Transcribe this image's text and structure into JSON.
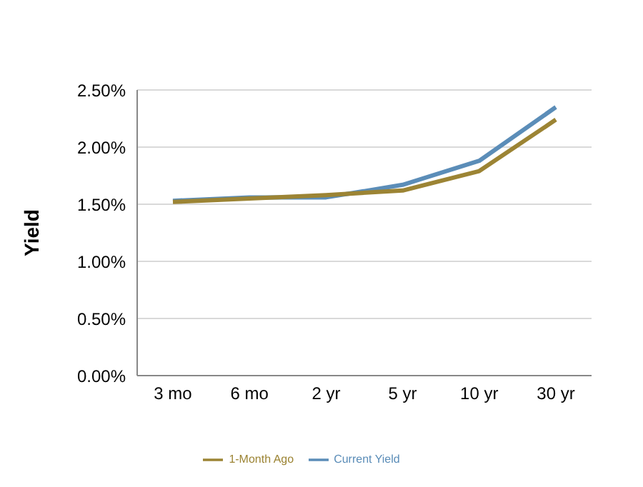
{
  "chart_data": {
    "type": "line",
    "ylabel": "Yield",
    "categories": [
      "3 mo",
      "6 mo",
      "2 yr",
      "5 yr",
      "10 yr",
      "30 yr"
    ],
    "series": [
      {
        "name": "Current Yield",
        "color": "#5b8db8",
        "values": [
          1.53,
          1.56,
          1.56,
          1.67,
          1.88,
          2.35
        ]
      },
      {
        "name": "1-Month Ago",
        "color": "#9c8434",
        "values": [
          1.52,
          1.55,
          1.58,
          1.62,
          1.79,
          2.24
        ]
      }
    ],
    "ylim": [
      0,
      2.5
    ],
    "yticks": [
      {
        "value": 0,
        "label": "0.00%"
      },
      {
        "value": 0.5,
        "label": "0.50%"
      },
      {
        "value": 1,
        "label": "1.00%"
      },
      {
        "value": 1.5,
        "label": "1.50%"
      },
      {
        "value": 2,
        "label": "2.00%"
      },
      {
        "value": 2.5,
        "label": "2.50%"
      }
    ],
    "grid": "y",
    "legend": "bottom",
    "marker": "none",
    "line_style": "solid"
  }
}
